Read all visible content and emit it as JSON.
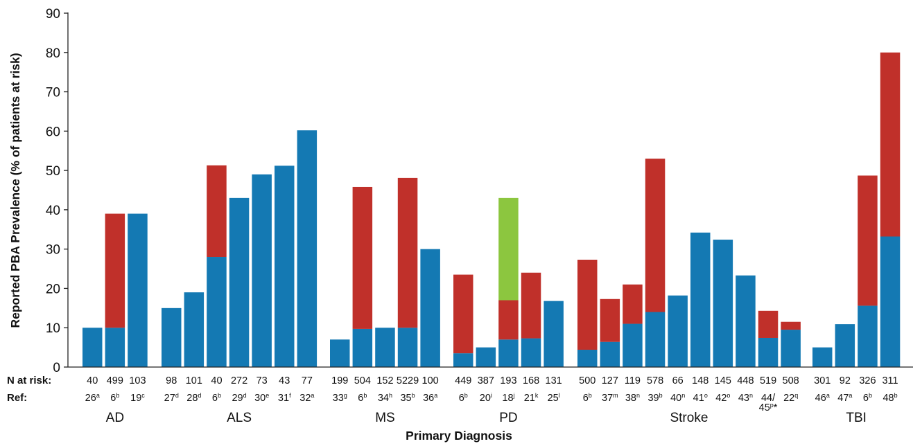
{
  "chart_data": {
    "type": "bar",
    "stacked": true,
    "xlabel": "Primary Diagnosis",
    "ylabel": "Reported PBA Prevalence (% of patients at risk)",
    "ylim": [
      0,
      90
    ],
    "yticks": [
      "0",
      "10",
      "20",
      "30",
      "40",
      "50",
      "60",
      "70",
      "80",
      "90"
    ],
    "grid": false,
    "row_labels": {
      "n_at_risk": "N at risk:",
      "ref": "Ref:"
    },
    "colors": {
      "blue": "#1479b3",
      "red": "#c0302a",
      "green": "#8cc63f"
    },
    "groups": [
      {
        "label": "AD",
        "bars": [
          {
            "n": "40",
            "ref": "26",
            "sup": "a",
            "segments": [
              {
                "color": "blue",
                "value": 10
              }
            ]
          },
          {
            "n": "499",
            "ref": "6",
            "sup": "b",
            "segments": [
              {
                "color": "blue",
                "value": 10
              },
              {
                "color": "red",
                "value": 29
              }
            ]
          },
          {
            "n": "103",
            "ref": "19",
            "sup": "c",
            "segments": [
              {
                "color": "blue",
                "value": 39
              }
            ]
          }
        ]
      },
      {
        "label": "ALS",
        "bars": [
          {
            "n": "98",
            "ref": "27",
            "sup": "d",
            "segments": [
              {
                "color": "blue",
                "value": 15
              }
            ]
          },
          {
            "n": "101",
            "ref": "28",
            "sup": "d",
            "segments": [
              {
                "color": "blue",
                "value": 19
              }
            ]
          },
          {
            "n": "40",
            "ref": "6",
            "sup": "b",
            "segments": [
              {
                "color": "blue",
                "value": 28
              },
              {
                "color": "red",
                "value": 23.3
              }
            ]
          },
          {
            "n": "272",
            "ref": "29",
            "sup": "d",
            "segments": [
              {
                "color": "blue",
                "value": 43
              }
            ]
          },
          {
            "n": "73",
            "ref": "30",
            "sup": "e",
            "segments": [
              {
                "color": "blue",
                "value": 49
              }
            ]
          },
          {
            "n": "43",
            "ref": "31",
            "sup": "f",
            "segments": [
              {
                "color": "blue",
                "value": 51.2
              }
            ]
          },
          {
            "n": "77",
            "ref": "32",
            "sup": "a",
            "segments": [
              {
                "color": "blue",
                "value": 60.2
              }
            ]
          }
        ]
      },
      {
        "label": "MS",
        "bars": [
          {
            "n": "199",
            "ref": "33",
            "sup": "g",
            "segments": [
              {
                "color": "blue",
                "value": 7
              }
            ]
          },
          {
            "n": "504",
            "ref": "6",
            "sup": "b",
            "segments": [
              {
                "color": "blue",
                "value": 9.7
              },
              {
                "color": "red",
                "value": 36.1
              }
            ]
          },
          {
            "n": "152",
            "ref": "34",
            "sup": "h",
            "segments": [
              {
                "color": "blue",
                "value": 10
              }
            ]
          },
          {
            "n": "5229",
            "ref": "35",
            "sup": "b",
            "segments": [
              {
                "color": "blue",
                "value": 10
              },
              {
                "color": "red",
                "value": 38.1
              }
            ]
          },
          {
            "n": "100",
            "ref": "36",
            "sup": "a",
            "segments": [
              {
                "color": "blue",
                "value": 30
              }
            ]
          }
        ]
      },
      {
        "label": "PD",
        "bars": [
          {
            "n": "449",
            "ref": "6",
            "sup": "b",
            "segments": [
              {
                "color": "blue",
                "value": 3.5
              },
              {
                "color": "red",
                "value": 20
              }
            ]
          },
          {
            "n": "387",
            "ref": "20",
            "sup": "i",
            "segments": [
              {
                "color": "blue",
                "value": 5
              }
            ]
          },
          {
            "n": "193",
            "ref": "18",
            "sup": "j",
            "segments": [
              {
                "color": "blue",
                "value": 7
              },
              {
                "color": "red",
                "value": 10
              },
              {
                "color": "green",
                "value": 26
              }
            ]
          },
          {
            "n": "168",
            "ref": "21",
            "sup": "k",
            "segments": [
              {
                "color": "blue",
                "value": 7.3
              },
              {
                "color": "red",
                "value": 16.7
              }
            ]
          },
          {
            "n": "131",
            "ref": "25",
            "sup": "l",
            "segments": [
              {
                "color": "blue",
                "value": 16.8
              }
            ]
          }
        ]
      },
      {
        "label": "Stroke",
        "bars": [
          {
            "n": "500",
            "ref": "6",
            "sup": "b",
            "segments": [
              {
                "color": "blue",
                "value": 4.4
              },
              {
                "color": "red",
                "value": 22.9
              }
            ]
          },
          {
            "n": "127",
            "ref": "37",
            "sup": "m",
            "segments": [
              {
                "color": "blue",
                "value": 6.4
              },
              {
                "color": "red",
                "value": 10.9
              }
            ]
          },
          {
            "n": "119",
            "ref": "38",
            "sup": "n",
            "segments": [
              {
                "color": "blue",
                "value": 11
              },
              {
                "color": "red",
                "value": 10
              }
            ]
          },
          {
            "n": "578",
            "ref": "39",
            "sup": "b",
            "segments": [
              {
                "color": "blue",
                "value": 14
              },
              {
                "color": "red",
                "value": 39
              }
            ]
          },
          {
            "n": "66",
            "ref": "40",
            "sup": "n",
            "segments": [
              {
                "color": "blue",
                "value": 18.2
              }
            ]
          },
          {
            "n": "148",
            "ref": "41",
            "sup": "o",
            "segments": [
              {
                "color": "blue",
                "value": 34.2
              }
            ]
          },
          {
            "n": "145",
            "ref": "42",
            "sup": "o",
            "segments": [
              {
                "color": "blue",
                "value": 32.4
              }
            ]
          },
          {
            "n": "448",
            "ref": "43",
            "sup": "n",
            "segments": [
              {
                "color": "blue",
                "value": 23.3
              }
            ]
          },
          {
            "n": "519",
            "ref": "44/",
            "sup": "",
            "ref2": "45",
            "sup2": "p",
            "note": "*",
            "segments": [
              {
                "color": "blue",
                "value": 7.4
              },
              {
                "color": "red",
                "value": 6.9
              }
            ]
          },
          {
            "n": "508",
            "ref": "22",
            "sup": "q",
            "segments": [
              {
                "color": "blue",
                "value": 9.5
              },
              {
                "color": "red",
                "value": 2
              }
            ]
          }
        ]
      },
      {
        "label": "TBI",
        "bars": [
          {
            "n": "301",
            "ref": "46",
            "sup": "a",
            "segments": [
              {
                "color": "blue",
                "value": 5
              }
            ]
          },
          {
            "n": "92",
            "ref": "47",
            "sup": "a",
            "segments": [
              {
                "color": "blue",
                "value": 10.9
              }
            ]
          },
          {
            "n": "326",
            "ref": "6",
            "sup": "b",
            "segments": [
              {
                "color": "blue",
                "value": 15.6
              },
              {
                "color": "red",
                "value": 33.1
              }
            ]
          },
          {
            "n": "311",
            "ref": "48",
            "sup": "b",
            "segments": [
              {
                "color": "blue",
                "value": 33.2
              },
              {
                "color": "red",
                "value": 46.8
              }
            ]
          }
        ]
      }
    ]
  }
}
